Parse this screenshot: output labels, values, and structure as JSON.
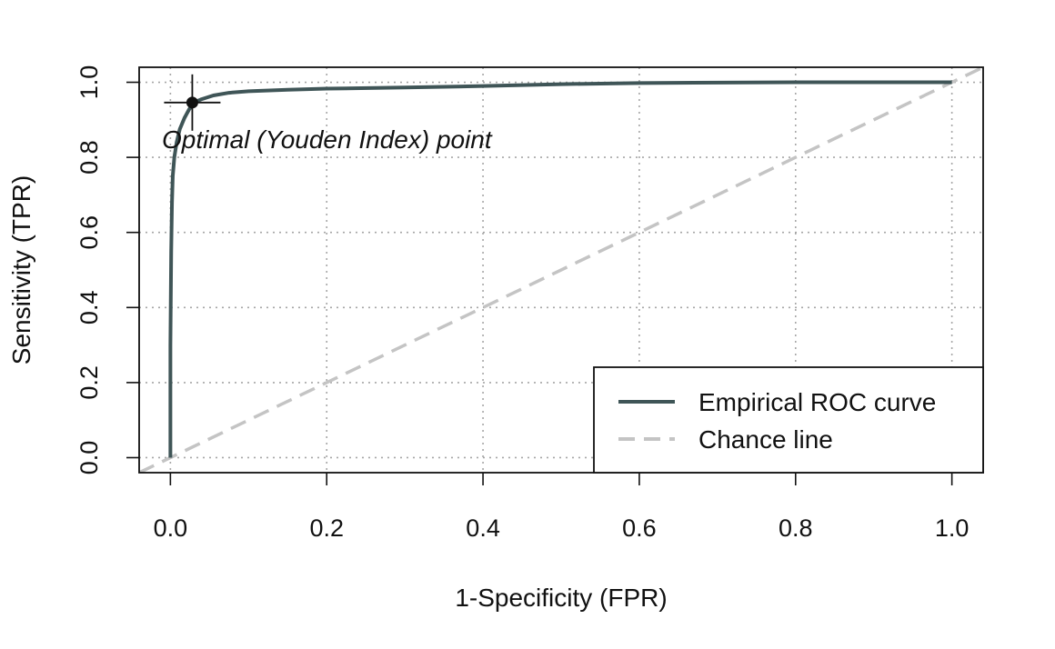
{
  "chart_data": {
    "type": "line",
    "title": "",
    "xlabel": "1-Specificity (FPR)",
    "ylabel": "Sensitivity (TPR)",
    "xlim": [
      -0.04,
      1.04
    ],
    "ylim": [
      -0.04,
      1.04
    ],
    "grid": true,
    "x_ticks": [
      {
        "value": 0.0,
        "label": "0.0"
      },
      {
        "value": 0.2,
        "label": "0.2"
      },
      {
        "value": 0.4,
        "label": "0.4"
      },
      {
        "value": 0.6,
        "label": "0.6"
      },
      {
        "value": 0.8,
        "label": "0.8"
      },
      {
        "value": 1.0,
        "label": "1.0"
      }
    ],
    "y_ticks": [
      {
        "value": 0.0,
        "label": "0.0"
      },
      {
        "value": 0.2,
        "label": "0.2"
      },
      {
        "value": 0.4,
        "label": "0.4"
      },
      {
        "value": 0.6,
        "label": "0.6"
      },
      {
        "value": 0.8,
        "label": "0.8"
      },
      {
        "value": 1.0,
        "label": "1.0"
      }
    ],
    "series": [
      {
        "name": "Empirical ROC curve",
        "color": "#3f5557",
        "style": "solid",
        "points": [
          [
            0.0,
            0.0
          ],
          [
            0.0,
            0.3
          ],
          [
            0.001,
            0.55
          ],
          [
            0.002,
            0.68
          ],
          [
            0.003,
            0.75
          ],
          [
            0.005,
            0.8
          ],
          [
            0.008,
            0.84
          ],
          [
            0.012,
            0.875
          ],
          [
            0.018,
            0.905
          ],
          [
            0.024,
            0.928
          ],
          [
            0.03,
            0.946
          ],
          [
            0.04,
            0.955
          ],
          [
            0.055,
            0.965
          ],
          [
            0.075,
            0.972
          ],
          [
            0.1,
            0.976
          ],
          [
            0.15,
            0.98
          ],
          [
            0.2,
            0.983
          ],
          [
            0.3,
            0.986
          ],
          [
            0.4,
            0.99
          ],
          [
            0.5,
            0.995
          ],
          [
            0.6,
            0.998
          ],
          [
            0.8,
            1.0
          ],
          [
            1.0,
            1.0
          ]
        ]
      },
      {
        "name": "Chance line",
        "color": "#c4c4c4",
        "style": "dashed",
        "points": [
          [
            -0.04,
            -0.04
          ],
          [
            1.04,
            1.04
          ]
        ]
      }
    ],
    "optimal_point": {
      "x": 0.028,
      "y": 0.946,
      "label": "Optimal (Youden Index) point"
    },
    "legend": {
      "position": "bottom-right",
      "entries": [
        "Empirical ROC curve",
        "Chance line"
      ]
    }
  }
}
